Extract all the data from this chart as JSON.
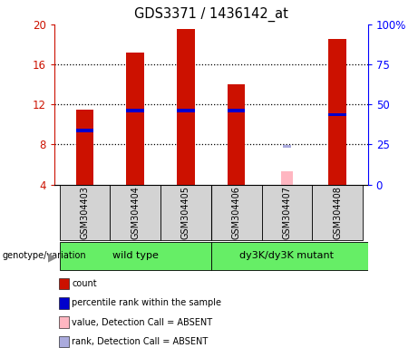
{
  "title": "GDS3371 / 1436142_at",
  "samples": [
    "GSM304403",
    "GSM304404",
    "GSM304405",
    "GSM304406",
    "GSM304407",
    "GSM304408"
  ],
  "count_values": [
    11.5,
    17.2,
    19.5,
    14.0,
    null,
    18.5
  ],
  "rank_values": [
    9.2,
    11.2,
    11.2,
    11.2,
    null,
    10.8
  ],
  "rank_bar_heights": [
    0.35,
    0.35,
    0.35,
    0.35,
    null,
    0.35
  ],
  "absent_value": 5.3,
  "absent_rank": 7.7,
  "absent_idx": 4,
  "ylim_left": [
    4,
    20
  ],
  "ylim_right": [
    0,
    100
  ],
  "yticks_left": [
    4,
    8,
    12,
    16,
    20
  ],
  "yticks_right": [
    0,
    25,
    50,
    75,
    100
  ],
  "bar_width": 0.35,
  "count_color": "#cc1100",
  "rank_color": "#0000cc",
  "absent_bar_color": "#ffb6c1",
  "absent_rank_color": "#aaaadd",
  "bg_color": "#ffffff",
  "label_area_color": "#d3d3d3",
  "group_area_color": "#66ee66",
  "legend_items": [
    {
      "color": "#cc1100",
      "label": "count"
    },
    {
      "color": "#0000cc",
      "label": "percentile rank within the sample"
    },
    {
      "color": "#ffb6c1",
      "label": "value, Detection Call = ABSENT"
    },
    {
      "color": "#aaaadd",
      "label": "rank, Detection Call = ABSENT"
    }
  ]
}
